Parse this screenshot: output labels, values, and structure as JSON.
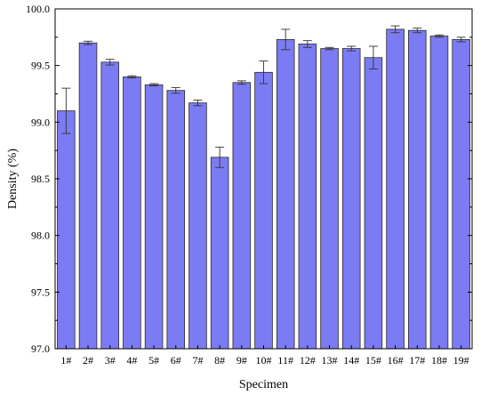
{
  "chart_data": {
    "type": "bar",
    "title": "",
    "xlabel": "Specimen",
    "ylabel": "Density (%)",
    "ylim": [
      97.0,
      100.0
    ],
    "yticks": [
      97.0,
      97.5,
      98.0,
      98.5,
      99.0,
      99.5,
      100.0
    ],
    "ytick_labels": [
      "97.0",
      "97.5",
      "98.0",
      "98.5",
      "99.0",
      "99.5",
      "100.0"
    ],
    "grid": false,
    "categories": [
      "1#",
      "2#",
      "3#",
      "4#",
      "5#",
      "6#",
      "7#",
      "8#",
      "9#",
      "10#",
      "11#",
      "12#",
      "13#",
      "14#",
      "15#",
      "16#",
      "17#",
      "18#",
      "19#"
    ],
    "values": [
      99.1,
      99.7,
      99.53,
      99.4,
      99.33,
      99.28,
      99.17,
      98.69,
      99.35,
      99.44,
      99.73,
      99.69,
      99.65,
      99.65,
      99.57,
      99.82,
      99.81,
      99.76,
      99.73
    ],
    "errors": [
      0.2,
      0.015,
      0.025,
      0.01,
      0.01,
      0.025,
      0.025,
      0.09,
      0.015,
      0.1,
      0.09,
      0.03,
      0.01,
      0.02,
      0.1,
      0.03,
      0.02,
      0.01,
      0.02
    ],
    "colors": {
      "bar_fill": "#7B7BF3",
      "bar_stroke": "#2a2a2a",
      "axis": "#000000",
      "error": "#333333"
    }
  }
}
